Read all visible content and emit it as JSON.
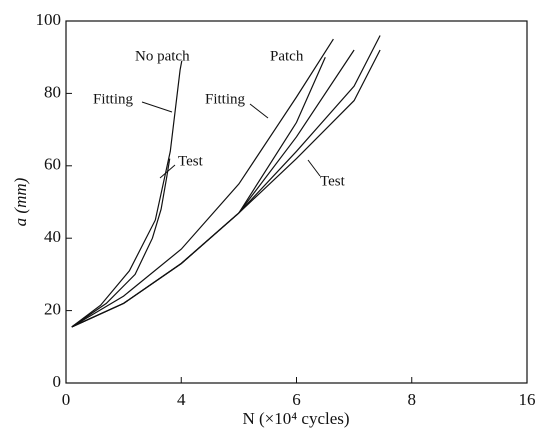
{
  "chart_data": {
    "type": "line",
    "x_label": "N (×10⁴ cycles)",
    "y_label": "a (mm)",
    "xlim": [
      0,
      8
    ],
    "ylim": [
      0,
      100
    ],
    "xticks": [
      0,
      {
        "value": 2,
        "label": "4"
      },
      {
        "value": 4,
        "label": "6"
      },
      {
        "value": 6,
        "label": "8"
      },
      {
        "value": 8,
        "label": "16"
      }
    ],
    "yticks": [
      0,
      20,
      40,
      60,
      80,
      100
    ],
    "annotations": [
      "No patch",
      "Patch",
      "Fitting",
      "Fitting",
      "Test",
      "Test"
    ],
    "series": [
      {
        "color": "#111111",
        "x": [
          0.1,
          0.6,
          1.1,
          1.55,
          1.81,
          1.98,
          2.01
        ],
        "values": [
          15.5,
          21.5,
          31,
          45,
          64,
          86.5,
          89
        ]
      },
      {
        "color": "#111111",
        "x": [
          0.1,
          0.7,
          1.2,
          1.5,
          1.65,
          1.75,
          1.8
        ],
        "values": [
          15.5,
          22,
          30,
          40,
          48,
          57,
          62
        ]
      },
      {
        "color": "#111111",
        "x": [
          0.1,
          1,
          2,
          3,
          4,
          4.64
        ],
        "values": [
          15.5,
          24,
          37,
          55,
          79,
          95
        ]
      },
      {
        "color": "#111111",
        "x": [
          0.1,
          1,
          2,
          3,
          4,
          4.5
        ],
        "values": [
          15.5,
          22,
          33,
          47,
          72,
          90
        ]
      },
      {
        "color": "#111111",
        "x": [
          0.1,
          1,
          2,
          3,
          4,
          5.0
        ],
        "values": [
          15.5,
          22,
          33,
          47,
          68,
          92
        ]
      },
      {
        "color": "#111111",
        "x": [
          0.1,
          1,
          2,
          3,
          4,
          5,
          5.45
        ],
        "values": [
          15.5,
          22,
          33,
          47,
          64,
          82,
          96
        ]
      },
      {
        "color": "#111111",
        "x": [
          0.1,
          1,
          2,
          3,
          4,
          5,
          5.45
        ],
        "values": [
          15.5,
          22,
          33,
          47,
          62,
          78,
          92
        ]
      }
    ]
  }
}
